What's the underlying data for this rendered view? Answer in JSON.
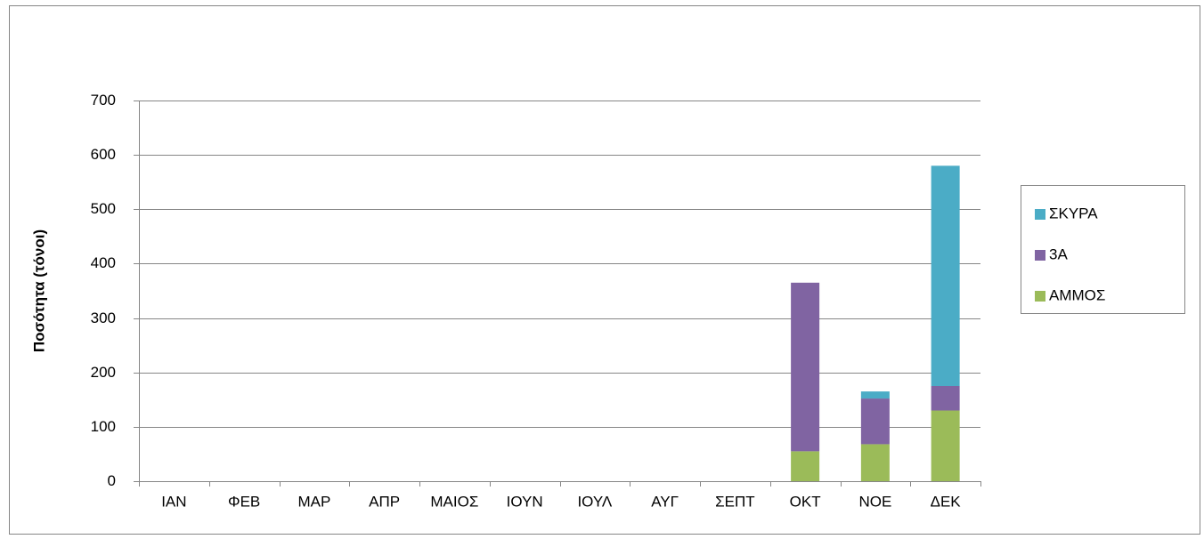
{
  "chart_data": {
    "type": "stacked_bar",
    "y_label": "Ποσότητα (τόνοι)",
    "categories": [
      "ΙΑΝ",
      "ΦΕΒ",
      "ΜΑΡ",
      "ΑΠΡ",
      "ΜΑΙΟΣ",
      "ΙΟΥΝ",
      "ΙΟΥΛ",
      "ΑΥΓ",
      "ΣΕΠΤ",
      "ΟΚΤ",
      "ΝΟΕ",
      "ΔΕΚ"
    ],
    "series": [
      {
        "name": "ΑΜΜΟΣ",
        "color": "#9bbb59",
        "values": [
          0,
          0,
          0,
          0,
          0,
          0,
          0,
          0,
          0,
          55,
          68,
          130
        ]
      },
      {
        "name": "3Α",
        "color": "#8064a2",
        "values": [
          0,
          0,
          0,
          0,
          0,
          0,
          0,
          0,
          0,
          310,
          84,
          45
        ]
      },
      {
        "name": "ΣΚΥΡΑ",
        "color": "#4bacc6",
        "values": [
          0,
          0,
          0,
          0,
          0,
          0,
          0,
          0,
          0,
          0,
          13,
          405
        ]
      }
    ],
    "ylim": [
      0,
      700
    ],
    "yticks": [
      0,
      100,
      200,
      300,
      400,
      500,
      600,
      700
    ],
    "grid": true,
    "legend": "right"
  }
}
